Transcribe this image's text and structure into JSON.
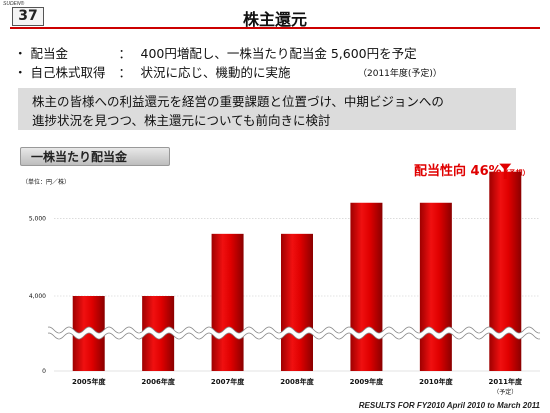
{
  "header": {
    "corner_label": "SUDEN®",
    "page_number": "37",
    "title": "株主還元"
  },
  "bullets": [
    {
      "marker": "・",
      "label": "配当金",
      "colon": "：",
      "text": "400円増配し、一株当たり配当金 5,600円を予定"
    },
    {
      "marker": "・",
      "label": "自己株式取得",
      "colon": "：",
      "text": "状況に応じ、機動的に実施"
    }
  ],
  "bullet_note": "（2011年度(予定)）",
  "policy_lines": [
    "株主の皆様への利益還元を経営の重要課題と位置づけ、中期ビジョンへの",
    "進捗状況を見つつ、株主還元についても前向きに検討"
  ],
  "chart_tab_label": "一株当たり配当金",
  "payout": {
    "label": "配当性向",
    "value": "46%",
    "note": "（予想）"
  },
  "footer": "RESULTS FOR FY2010  April 2010 to March 2011",
  "colors": {
    "accent": "#cc0000",
    "bar": "#d40000"
  },
  "chart_data": {
    "type": "bar",
    "unit_label": "（単位：円／株）",
    "categories": [
      "2005年度",
      "2006年度",
      "2007年度",
      "2008年度",
      "2009年度",
      "2010年度",
      "2011年度"
    ],
    "category_notes": [
      "",
      "",
      "",
      "",
      "",
      "",
      "（予定）"
    ],
    "values": [
      4000,
      4000,
      4800,
      4800,
      5200,
      5200,
      5600
    ],
    "yticks": [
      0,
      4000,
      5000
    ],
    "ytick_labels": [
      "0",
      "4,000",
      "5,000"
    ],
    "ylim": [
      3500,
      5800
    ],
    "axis_break": true,
    "gridlines": true
  }
}
